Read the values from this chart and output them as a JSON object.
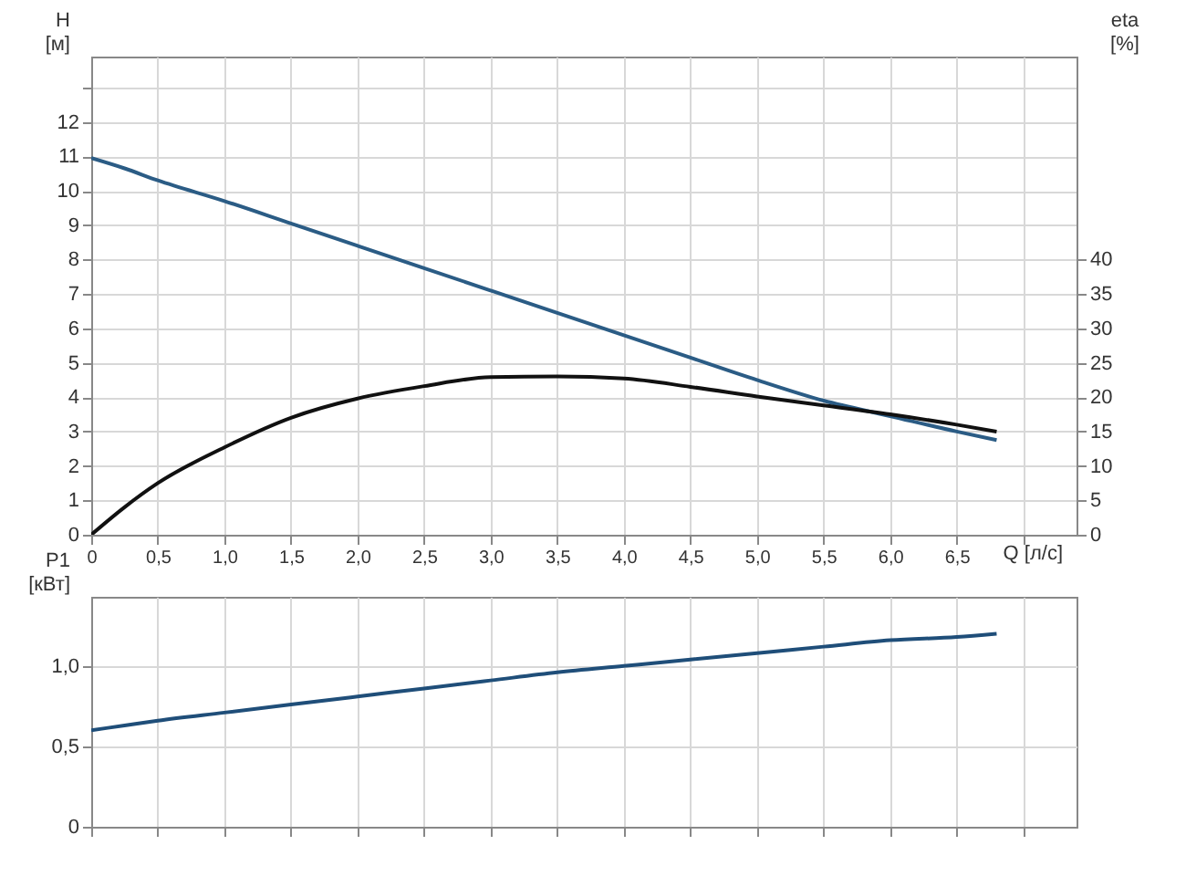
{
  "chart_data": [
    {
      "type": "line",
      "xlabel": "Q [л/с]",
      "ylabel": "H\n[м]",
      "y2label": "eta\n[%]",
      "grid": true,
      "x": [
        0,
        0.25,
        0.5,
        1,
        1.5,
        2,
        2.5,
        3,
        3.5,
        4,
        4.5,
        5,
        5.5,
        6,
        6.5,
        6.8
      ],
      "xlim": [
        0,
        7.4
      ],
      "xticks": [
        0,
        {
          "value": 0.5,
          "label": "0,5"
        },
        {
          "value": 1,
          "label": "1,0"
        },
        {
          "value": 1.5,
          "label": "1,5"
        },
        {
          "value": 2,
          "label": "2,0"
        },
        {
          "value": 2.5,
          "label": "2,5"
        },
        {
          "value": 3,
          "label": "3,0"
        },
        {
          "value": 3.5,
          "label": "3,5"
        },
        {
          "value": 4,
          "label": "4,0"
        },
        {
          "value": 4.5,
          "label": "4,5"
        },
        {
          "value": 5,
          "label": "5,0"
        },
        {
          "value": 5.5,
          "label": "5,5"
        },
        {
          "value": 6,
          "label": "6,0"
        },
        {
          "value": 6.5,
          "label": "6,5"
        },
        {
          "value": 7,
          "label": null
        }
      ],
      "ylim": [
        0,
        13.9
      ],
      "yticks": [
        0,
        1,
        2,
        3,
        4,
        5,
        6,
        7,
        8,
        9,
        10,
        11,
        12,
        {
          "value": 13,
          "label": null
        }
      ],
      "y2lim": [
        0,
        69.5
      ],
      "y2ticks": [
        0,
        5,
        10,
        15,
        20,
        25,
        30,
        35,
        40
      ],
      "series": [
        {
          "color": "#2b5c85",
          "values": [
            10.95,
            10.65,
            10.3,
            9.7,
            9.05,
            8.4,
            7.75,
            7.1,
            6.45,
            5.8,
            5.15,
            4.5,
            3.9,
            3.45,
            3.0,
            2.75
          ]
        },
        {
          "color": "#111111",
          "axis": "y2",
          "values": [
            0,
            4.0,
            7.5,
            12.7,
            17,
            19.8,
            21.6,
            22.9,
            23,
            22.7,
            21.5,
            20.1,
            18.8,
            17.5,
            16,
            15
          ]
        }
      ]
    },
    {
      "type": "line",
      "ylabel": "P1\n[кВт]",
      "grid": true,
      "tick_labels": "y",
      "x": [
        0,
        0.25,
        0.5,
        1,
        1.5,
        2,
        2.5,
        3,
        3.5,
        4,
        4.5,
        5,
        5.5,
        6,
        6.5,
        6.8
      ],
      "xlim": [
        0,
        7.4
      ],
      "xticks": [
        0,
        0.5,
        1,
        1.5,
        2,
        2.5,
        3,
        3.5,
        4,
        4.5,
        5,
        5.5,
        6,
        6.5,
        7
      ],
      "ylim": [
        0,
        1.43
      ],
      "yticks": [
        0,
        {
          "value": 0.5,
          "label": "0,5"
        },
        {
          "value": 1,
          "label": "1,0"
        }
      ],
      "series": [
        {
          "color": "#1f4e79",
          "values": [
            0.6,
            0.63,
            0.66,
            0.71,
            0.76,
            0.81,
            0.86,
            0.91,
            0.96,
            1.0,
            1.04,
            1.08,
            1.12,
            1.16,
            1.18,
            1.2
          ]
        }
      ]
    }
  ]
}
